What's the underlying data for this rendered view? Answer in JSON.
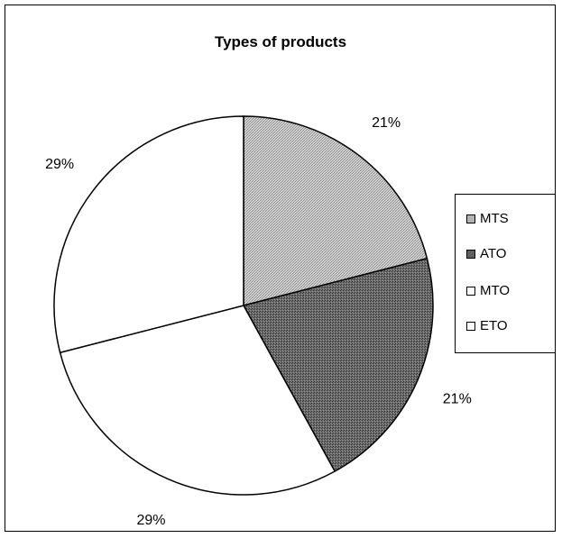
{
  "chart_data": {
    "type": "pie",
    "title": "Types of products",
    "categories": [
      "MTS",
      "ATO",
      "MTO",
      "ETO"
    ],
    "values": [
      21,
      21,
      29,
      29
    ],
    "data_labels": [
      "21%",
      "21%",
      "29%",
      "29%"
    ],
    "start_angle_deg": 0,
    "direction": "clockwise",
    "legend_position": "right",
    "colors": {
      "MTS": "#b4b4b4",
      "ATO": "#5f5f5f",
      "MTO": "#ffffff",
      "ETO": "#ffffff"
    }
  }
}
